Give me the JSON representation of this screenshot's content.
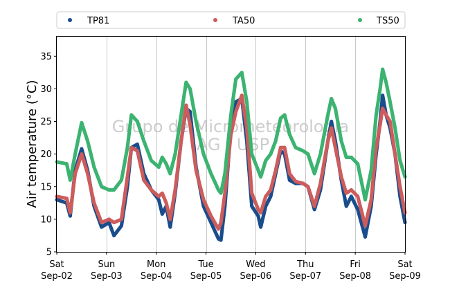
{
  "chart_data": {
    "type": "scatter",
    "ylabel": "Air temperature (°C)",
    "ylim": [
      5,
      38
    ],
    "yticks": [
      5,
      10,
      15,
      20,
      25,
      30,
      35
    ],
    "xlim": [
      0,
      7
    ],
    "xticks": [
      {
        "x": 0,
        "day": "Sat",
        "date": "Sep-02"
      },
      {
        "x": 1,
        "day": "Sun",
        "date": "Sep-03"
      },
      {
        "x": 2,
        "day": "Mon",
        "date": "Sep-04"
      },
      {
        "x": 3,
        "day": "Tue",
        "date": "Sep-05"
      },
      {
        "x": 4,
        "day": "Wed",
        "date": "Sep-06"
      },
      {
        "x": 5,
        "day": "Thu",
        "date": "Sep-07"
      },
      {
        "x": 6,
        "day": "Fri",
        "date": "Sep-08"
      },
      {
        "x": 7,
        "day": "Sat",
        "date": "Sep-09"
      }
    ],
    "grid": "vertical",
    "legend_position": "top",
    "watermark": [
      "Grupo de Micrometeorologia",
      "IAG / USP"
    ],
    "series": [
      {
        "name": "TP81",
        "color": "#1a4d8c",
        "points": [
          [
            0,
            13.0
          ],
          [
            0.2,
            12.5
          ],
          [
            0.27,
            10.5
          ],
          [
            0.37,
            17.5
          ],
          [
            0.5,
            20.8
          ],
          [
            0.62,
            17.5
          ],
          [
            0.75,
            12.0
          ],
          [
            0.9,
            8.8
          ],
          [
            1.05,
            9.5
          ],
          [
            1.15,
            7.5
          ],
          [
            1.3,
            9.0
          ],
          [
            1.42,
            15.0
          ],
          [
            1.5,
            21.0
          ],
          [
            1.62,
            21.5
          ],
          [
            1.75,
            17.0
          ],
          [
            1.9,
            14.5
          ],
          [
            2.05,
            13.0
          ],
          [
            2.12,
            10.8
          ],
          [
            2.2,
            12.0
          ],
          [
            2.28,
            8.8
          ],
          [
            2.38,
            14.0
          ],
          [
            2.5,
            22.0
          ],
          [
            2.6,
            27.0
          ],
          [
            2.68,
            26.5
          ],
          [
            2.8,
            18.0
          ],
          [
            2.95,
            12.0
          ],
          [
            3.1,
            9.5
          ],
          [
            3.25,
            7.0
          ],
          [
            3.3,
            6.8
          ],
          [
            3.38,
            12.0
          ],
          [
            3.5,
            24.0
          ],
          [
            3.6,
            28.0
          ],
          [
            3.72,
            28.5
          ],
          [
            3.82,
            22.0
          ],
          [
            3.92,
            12.0
          ],
          [
            4.05,
            10.5
          ],
          [
            4.1,
            8.8
          ],
          [
            4.2,
            12.0
          ],
          [
            4.3,
            13.5
          ],
          [
            4.4,
            17.0
          ],
          [
            4.5,
            20.5
          ],
          [
            4.58,
            20.0
          ],
          [
            4.68,
            16.0
          ],
          [
            4.8,
            15.5
          ],
          [
            4.95,
            15.5
          ],
          [
            5.05,
            15.0
          ],
          [
            5.18,
            11.5
          ],
          [
            5.3,
            14.5
          ],
          [
            5.45,
            22.0
          ],
          [
            5.52,
            25.0
          ],
          [
            5.6,
            22.0
          ],
          [
            5.72,
            16.0
          ],
          [
            5.82,
            12.0
          ],
          [
            5.92,
            13.5
          ],
          [
            6.05,
            11.5
          ],
          [
            6.2,
            7.3
          ],
          [
            6.32,
            12.0
          ],
          [
            6.42,
            20.0
          ],
          [
            6.5,
            25.0
          ],
          [
            6.55,
            29.0
          ],
          [
            6.62,
            26.0
          ],
          [
            6.7,
            24.0
          ],
          [
            6.8,
            20.0
          ],
          [
            6.9,
            13.5
          ],
          [
            7.0,
            9.5
          ]
        ]
      },
      {
        "name": "TA50",
        "color": "#cd5c5c",
        "points": [
          [
            0,
            13.5
          ],
          [
            0.2,
            13.2
          ],
          [
            0.27,
            11.0
          ],
          [
            0.37,
            17.0
          ],
          [
            0.5,
            20.0
          ],
          [
            0.62,
            17.0
          ],
          [
            0.75,
            12.5
          ],
          [
            0.9,
            9.5
          ],
          [
            1.05,
            10.0
          ],
          [
            1.15,
            9.5
          ],
          [
            1.3,
            10.0
          ],
          [
            1.42,
            16.5
          ],
          [
            1.5,
            21.0
          ],
          [
            1.62,
            20.5
          ],
          [
            1.75,
            16.0
          ],
          [
            1.9,
            14.5
          ],
          [
            2.05,
            13.5
          ],
          [
            2.12,
            14.0
          ],
          [
            2.2,
            12.5
          ],
          [
            2.28,
            10.0
          ],
          [
            2.38,
            14.5
          ],
          [
            2.5,
            22.0
          ],
          [
            2.6,
            27.5
          ],
          [
            2.68,
            24.5
          ],
          [
            2.8,
            17.5
          ],
          [
            2.95,
            13.0
          ],
          [
            3.1,
            10.5
          ],
          [
            3.25,
            8.5
          ],
          [
            3.3,
            9.5
          ],
          [
            3.38,
            14.0
          ],
          [
            3.5,
            23.0
          ],
          [
            3.6,
            26.5
          ],
          [
            3.72,
            29.0
          ],
          [
            3.82,
            24.0
          ],
          [
            3.92,
            14.0
          ],
          [
            4.05,
            11.5
          ],
          [
            4.1,
            11.0
          ],
          [
            4.2,
            13.5
          ],
          [
            4.3,
            14.5
          ],
          [
            4.4,
            17.5
          ],
          [
            4.5,
            21.0
          ],
          [
            4.58,
            21.0
          ],
          [
            4.68,
            17.0
          ],
          [
            4.8,
            15.8
          ],
          [
            4.95,
            15.5
          ],
          [
            5.05,
            15.0
          ],
          [
            5.18,
            12.0
          ],
          [
            5.3,
            15.5
          ],
          [
            5.45,
            22.0
          ],
          [
            5.52,
            24.0
          ],
          [
            5.6,
            21.0
          ],
          [
            5.72,
            16.5
          ],
          [
            5.82,
            14.0
          ],
          [
            5.92,
            14.5
          ],
          [
            6.05,
            13.5
          ],
          [
            6.2,
            9.0
          ],
          [
            6.32,
            13.0
          ],
          [
            6.42,
            21.0
          ],
          [
            6.5,
            24.5
          ],
          [
            6.55,
            27.0
          ],
          [
            6.62,
            26.0
          ],
          [
            6.7,
            25.0
          ],
          [
            6.8,
            20.0
          ],
          [
            6.9,
            15.0
          ],
          [
            7.0,
            11.0
          ]
        ]
      },
      {
        "name": "TS50",
        "color": "#3cb371",
        "points": [
          [
            0,
            18.8
          ],
          [
            0.2,
            18.5
          ],
          [
            0.27,
            16.0
          ],
          [
            0.37,
            20.0
          ],
          [
            0.5,
            24.8
          ],
          [
            0.62,
            22.0
          ],
          [
            0.75,
            18.0
          ],
          [
            0.9,
            15.0
          ],
          [
            1.05,
            14.5
          ],
          [
            1.15,
            14.5
          ],
          [
            1.3,
            16.0
          ],
          [
            1.42,
            21.0
          ],
          [
            1.5,
            26.0
          ],
          [
            1.62,
            25.0
          ],
          [
            1.75,
            22.0
          ],
          [
            1.9,
            19.0
          ],
          [
            2.05,
            18.0
          ],
          [
            2.12,
            19.5
          ],
          [
            2.2,
            18.5
          ],
          [
            2.28,
            17.0
          ],
          [
            2.38,
            20.0
          ],
          [
            2.5,
            26.0
          ],
          [
            2.6,
            31.0
          ],
          [
            2.68,
            30.0
          ],
          [
            2.8,
            25.0
          ],
          [
            2.95,
            20.0
          ],
          [
            3.1,
            17.0
          ],
          [
            3.25,
            14.5
          ],
          [
            3.3,
            14.0
          ],
          [
            3.38,
            17.0
          ],
          [
            3.5,
            26.0
          ],
          [
            3.6,
            31.5
          ],
          [
            3.72,
            32.5
          ],
          [
            3.82,
            28.0
          ],
          [
            3.92,
            20.0
          ],
          [
            4.05,
            17.5
          ],
          [
            4.1,
            16.5
          ],
          [
            4.2,
            19.0
          ],
          [
            4.3,
            20.0
          ],
          [
            4.4,
            22.0
          ],
          [
            4.5,
            25.5
          ],
          [
            4.58,
            26.0
          ],
          [
            4.68,
            23.0
          ],
          [
            4.8,
            21.0
          ],
          [
            4.95,
            20.5
          ],
          [
            5.05,
            20.0
          ],
          [
            5.18,
            17.0
          ],
          [
            5.3,
            20.0
          ],
          [
            5.45,
            26.0
          ],
          [
            5.52,
            28.5
          ],
          [
            5.6,
            27.0
          ],
          [
            5.72,
            22.0
          ],
          [
            5.82,
            19.5
          ],
          [
            5.92,
            19.5
          ],
          [
            6.05,
            18.5
          ],
          [
            6.2,
            13.0
          ],
          [
            6.32,
            17.5
          ],
          [
            6.42,
            26.0
          ],
          [
            6.5,
            30.0
          ],
          [
            6.55,
            33.0
          ],
          [
            6.62,
            31.0
          ],
          [
            6.7,
            28.0
          ],
          [
            6.8,
            24.0
          ],
          [
            6.9,
            19.0
          ],
          [
            7.0,
            16.5
          ]
        ]
      }
    ]
  }
}
